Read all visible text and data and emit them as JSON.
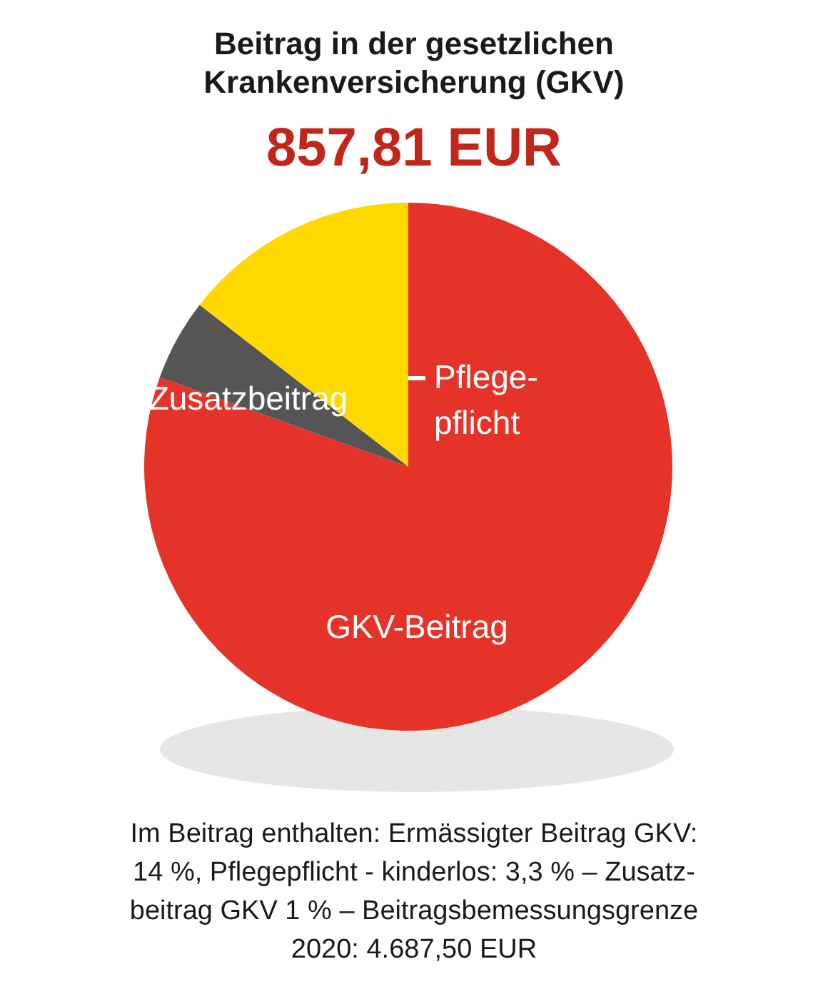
{
  "chart_data": {
    "type": "pie",
    "title": "Beitrag in der gesetzlichen\nKrankenversicherung (GKV)",
    "subtitle": "857,81 EUR",
    "categories": [
      "GKV-Beitrag",
      "Zusatzbeitrag",
      "Pflege-\npflicht"
    ],
    "values": [
      80.5,
      5,
      14.5
    ],
    "colors": [
      "#e63329",
      "#555555",
      "#ffd800"
    ],
    "annotations": [
      "Im Beitrag enthalten: Ermässigter Beitrag GKV:\n14 %, Pflegepflicht - kinderlos: 3,3 % – Zusatz-\nbeitrag GKV 1 % – Beitragsbemessungsgrenze\n2020: 4.687,50 EUR"
    ]
  }
}
